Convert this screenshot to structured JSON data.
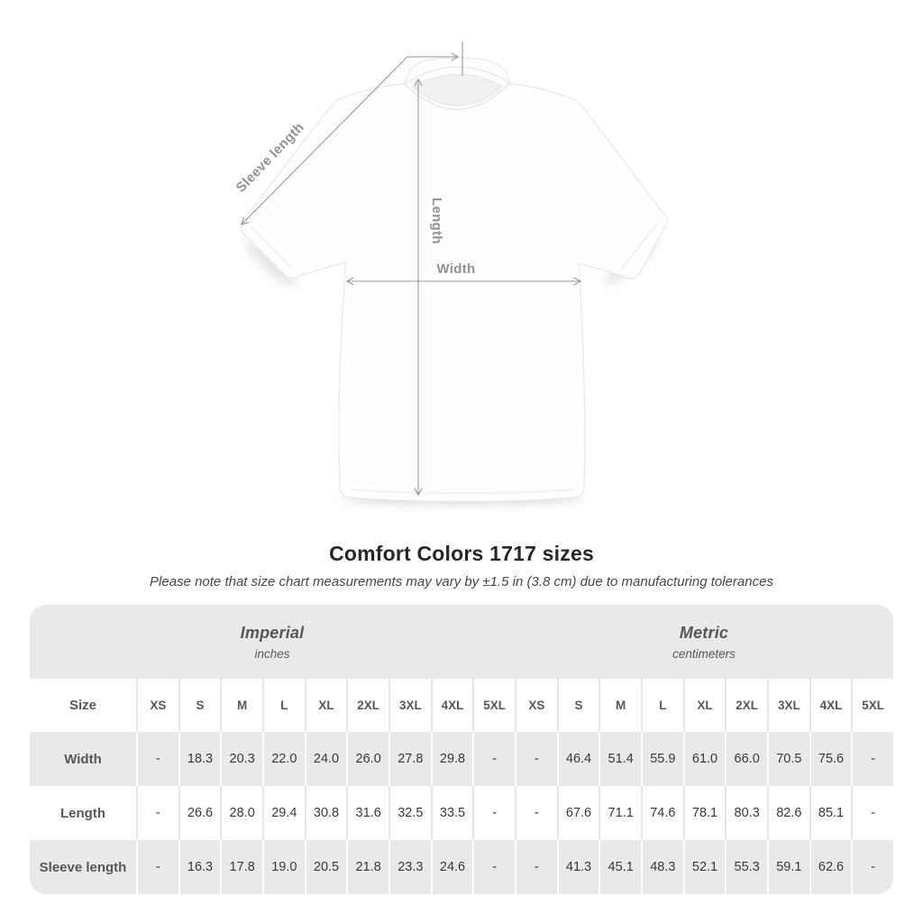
{
  "diagram": {
    "labels": {
      "sleeve_length": "Sleeve length",
      "length": "Length",
      "width": "Width"
    }
  },
  "title": "Comfort Colors 1717 sizes",
  "subtitle": "Please note that size chart measurements may vary by ±1.5 in (3.8 cm) due to manufacturing tolerances",
  "table": {
    "unit_groups": [
      {
        "name": "Imperial",
        "unit": "inches"
      },
      {
        "name": "Metric",
        "unit": "centimeters"
      }
    ],
    "size_header_label": "Size",
    "sizes": [
      "XS",
      "S",
      "M",
      "L",
      "XL",
      "2XL",
      "3XL",
      "4XL",
      "5XL"
    ],
    "rows": [
      {
        "label": "Width",
        "imperial": [
          "-",
          "18.3",
          "20.3",
          "22.0",
          "24.0",
          "26.0",
          "27.8",
          "29.8",
          "-"
        ],
        "metric": [
          "-",
          "46.4",
          "51.4",
          "55.9",
          "61.0",
          "66.0",
          "70.5",
          "75.6",
          "-"
        ]
      },
      {
        "label": "Length",
        "imperial": [
          "-",
          "26.6",
          "28.0",
          "29.4",
          "30.8",
          "31.6",
          "32.5",
          "33.5",
          "-"
        ],
        "metric": [
          "-",
          "67.6",
          "71.1",
          "74.6",
          "78.1",
          "80.3",
          "82.6",
          "85.1",
          "-"
        ]
      },
      {
        "label": "Sleeve length",
        "imperial": [
          "-",
          "16.3",
          "17.8",
          "19.0",
          "20.5",
          "21.8",
          "23.3",
          "24.6",
          "-"
        ],
        "metric": [
          "-",
          "41.3",
          "45.1",
          "48.3",
          "52.1",
          "55.3",
          "59.1",
          "62.6",
          "-"
        ]
      }
    ]
  },
  "colors": {
    "band_gray": "#e9e9e9",
    "annotation_gray": "#999999",
    "label_gray": "#54585c",
    "value_dark": "#37383a"
  }
}
